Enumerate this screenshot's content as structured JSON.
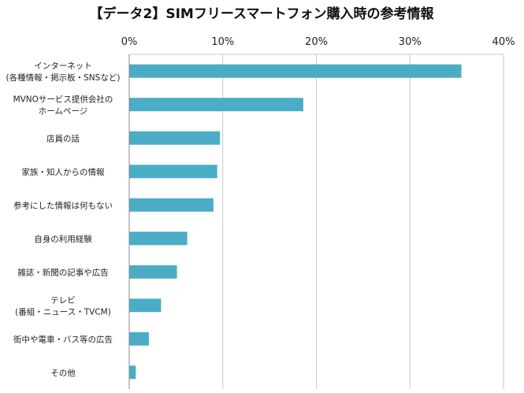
{
  "chart_data": {
    "type": "bar",
    "orientation": "horizontal",
    "title": "【データ2】SIMフリースマートフォン購入時の参考情報",
    "xlabel": "",
    "ylabel": "",
    "xlim": [
      0,
      40
    ],
    "x_ticks": [
      0,
      10,
      20,
      30,
      40
    ],
    "x_tick_labels": [
      "0%",
      "10%",
      "20%",
      "30%",
      "40%"
    ],
    "x_axis_position": "top",
    "grid": true,
    "bar_color": "#4bacc6",
    "categories": [
      [
        "インターネット",
        "(各種情報・掲示板・SNSなど)"
      ],
      [
        "MVNOサービス提供会社の",
        "ホームページ"
      ],
      [
        "店員の話"
      ],
      [
        "家族・知人からの情報"
      ],
      [
        "参考にした情報は何もない"
      ],
      [
        "自身の利用経験"
      ],
      [
        "雑誌・新聞の記事や広告"
      ],
      [
        "テレビ",
        "(番組・ニュース・TVCM)"
      ],
      [
        "街中や電車・バス等の広告"
      ],
      [
        "その他"
      ]
    ],
    "values": [
      35.5,
      18.6,
      9.7,
      9.4,
      9.0,
      6.2,
      5.1,
      3.4,
      2.1,
      0.7
    ]
  }
}
